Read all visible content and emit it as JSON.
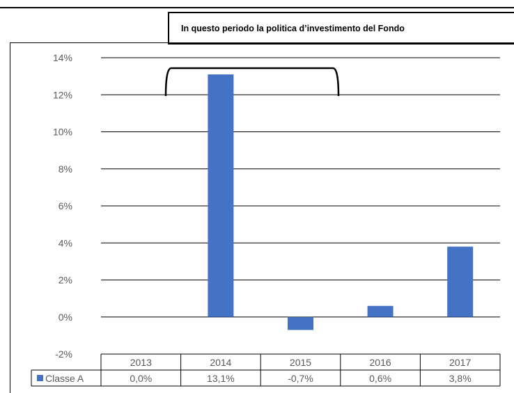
{
  "callout": {
    "text": "In questo periodo la politica d’investimento del Fondo"
  },
  "chart_data": {
    "type": "bar",
    "title": "",
    "xlabel": "",
    "ylabel": "",
    "categories": [
      "2013",
      "2014",
      "2015",
      "2016",
      "2017"
    ],
    "series": [
      {
        "name": "Classe A",
        "values": [
          0.0,
          13.1,
          -0.7,
          0.6,
          3.8
        ],
        "labels": [
          "0,0%",
          "13,1%",
          "-0,7%",
          "0,6%",
          "3,8%"
        ],
        "color": "#4472C4"
      }
    ],
    "ylim": [
      -2,
      14
    ],
    "yticks": [
      {
        "value": 14,
        "label": "14%"
      },
      {
        "value": 12,
        "label": "12%"
      },
      {
        "value": 10,
        "label": "10%"
      },
      {
        "value": 8,
        "label": "8%"
      },
      {
        "value": 6,
        "label": "6%"
      },
      {
        "value": 4,
        "label": "4%"
      },
      {
        "value": 2,
        "label": "2%"
      },
      {
        "value": 0,
        "label": "0%"
      },
      {
        "value": -2,
        "label": "-2%"
      }
    ],
    "grid": true,
    "legend": "data-table",
    "data_table": true
  },
  "colors": {
    "bar": "#4472C4",
    "grid": "#000000",
    "text": "#595959"
  }
}
